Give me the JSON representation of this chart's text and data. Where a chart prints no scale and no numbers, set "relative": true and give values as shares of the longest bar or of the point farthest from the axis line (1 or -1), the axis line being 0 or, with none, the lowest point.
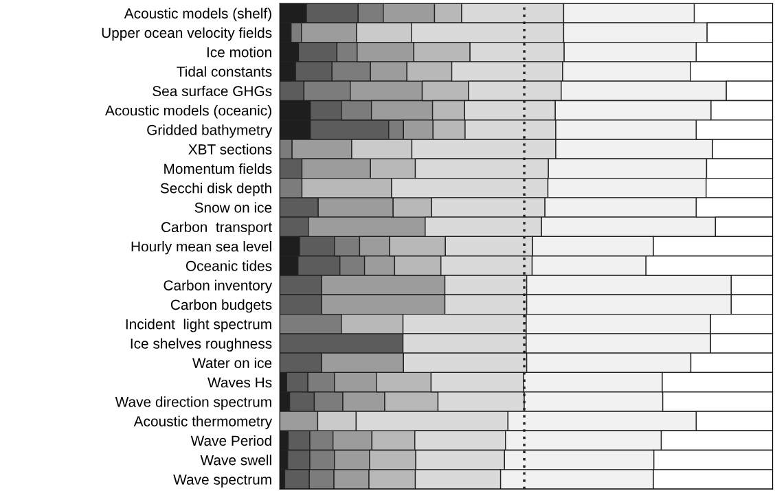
{
  "chart_data": {
    "type": "bar",
    "orientation": "horizontal",
    "stacked": true,
    "relative": true,
    "grid": false,
    "legend": false,
    "categories": [
      "Acoustic models (shelf)",
      "Upper ocean velocity fields",
      "Ice motion",
      "Tidal constants",
      "Sea surface GHGs",
      "Acoustic models (oceanic)",
      "Gridded bathymetry",
      "XBT sections",
      "Momentum fields",
      "Secchi disk depth",
      "Snow on ice",
      "Carbon  transport",
      "Hourly mean sea level",
      "Oceanic tides",
      "Carbon inventory",
      "Carbon budgets",
      "Incident  light spectrum",
      "Ice shelves roughness",
      "Water on ice",
      "Waves Hs",
      "Wave direction spectrum",
      "Acoustic thermometry",
      "Wave Period",
      "Wave swell",
      "Wave spectrum"
    ],
    "series": [
      {
        "color": "#1e1e1e",
        "values": [
          0.054,
          0.023,
          0.038,
          0.032,
          null,
          0.062,
          0.062,
          null,
          null,
          null,
          null,
          null,
          0.04,
          0.037,
          null,
          null,
          null,
          null,
          null,
          0.014,
          0.02,
          null,
          0.017,
          0.016,
          0.01
        ]
      },
      {
        "color": "#5c5c5c",
        "values": [
          0.105,
          null,
          0.078,
          0.074,
          0.049,
          0.063,
          0.159,
          null,
          0.045,
          null,
          0.078,
          0.058,
          0.071,
          0.085,
          0.085,
          0.085,
          null,
          0.25,
          0.085,
          0.043,
          0.05,
          null,
          0.044,
          0.045,
          0.05
        ]
      },
      {
        "color": "#7c7c7c",
        "values": [
          0.051,
          0.021,
          0.041,
          0.078,
          0.094,
          0.061,
          0.03,
          0.025,
          null,
          0.045,
          null,
          null,
          0.051,
          0.05,
          null,
          null,
          0.125,
          null,
          null,
          0.054,
          0.058,
          null,
          0.047,
          0.05,
          0.05
        ]
      },
      {
        "color": "#9c9c9c",
        "values": [
          0.104,
          0.112,
          0.115,
          0.074,
          0.146,
          0.124,
          0.06,
          0.121,
          0.139,
          null,
          0.152,
          0.237,
          0.061,
          0.061,
          0.25,
          0.25,
          null,
          null,
          0.166,
          0.085,
          0.085,
          0.077,
          0.079,
          0.071,
          0.071
        ]
      },
      {
        "color": "#b8b8b8",
        "values": [
          0.055,
          null,
          0.114,
          0.091,
          0.094,
          0.065,
          0.065,
          null,
          0.091,
          0.182,
          0.078,
          null,
          0.113,
          0.094,
          null,
          null,
          0.125,
          null,
          null,
          0.111,
          0.108,
          null,
          0.087,
          0.094,
          0.094
        ]
      },
      {
        "color": "#cacaca",
        "values": [
          null,
          0.111,
          null,
          null,
          null,
          null,
          null,
          0.122,
          null,
          null,
          null,
          null,
          null,
          null,
          null,
          null,
          null,
          null,
          null,
          null,
          null,
          0.078,
          null,
          null,
          null
        ]
      },
      {
        "color": "#dadada",
        "values": [
          0.207,
          0.309,
          0.191,
          0.225,
          0.188,
          0.184,
          0.184,
          0.292,
          0.27,
          0.317,
          0.23,
          0.236,
          0.177,
          0.185,
          0.166,
          0.166,
          0.25,
          0.25,
          0.25,
          0.188,
          0.175,
          0.308,
          0.184,
          0.18,
          0.173
        ]
      },
      {
        "color": "#f1f1f1",
        "values": [
          0.265,
          0.291,
          0.268,
          0.259,
          0.335,
          0.316,
          0.285,
          0.318,
          0.321,
          0.321,
          0.307,
          0.353,
          0.245,
          0.231,
          0.415,
          0.415,
          0.374,
          0.374,
          0.333,
          0.281,
          0.281,
          0.382,
          0.316,
          0.303,
          0.31
        ]
      },
      {
        "color": "#ffffff",
        "values": [
          0.159,
          0.133,
          0.155,
          0.167,
          0.094,
          0.125,
          0.155,
          0.122,
          0.134,
          0.135,
          0.155,
          0.116,
          0.242,
          0.257,
          0.084,
          0.084,
          0.126,
          0.126,
          0.166,
          0.224,
          0.223,
          0.155,
          0.226,
          0.241,
          0.242
        ]
      }
    ],
    "ref_lines": [
      {
        "axis": "x",
        "value": 0.496,
        "line_style": "dotted",
        "color": "#222222"
      }
    ]
  }
}
